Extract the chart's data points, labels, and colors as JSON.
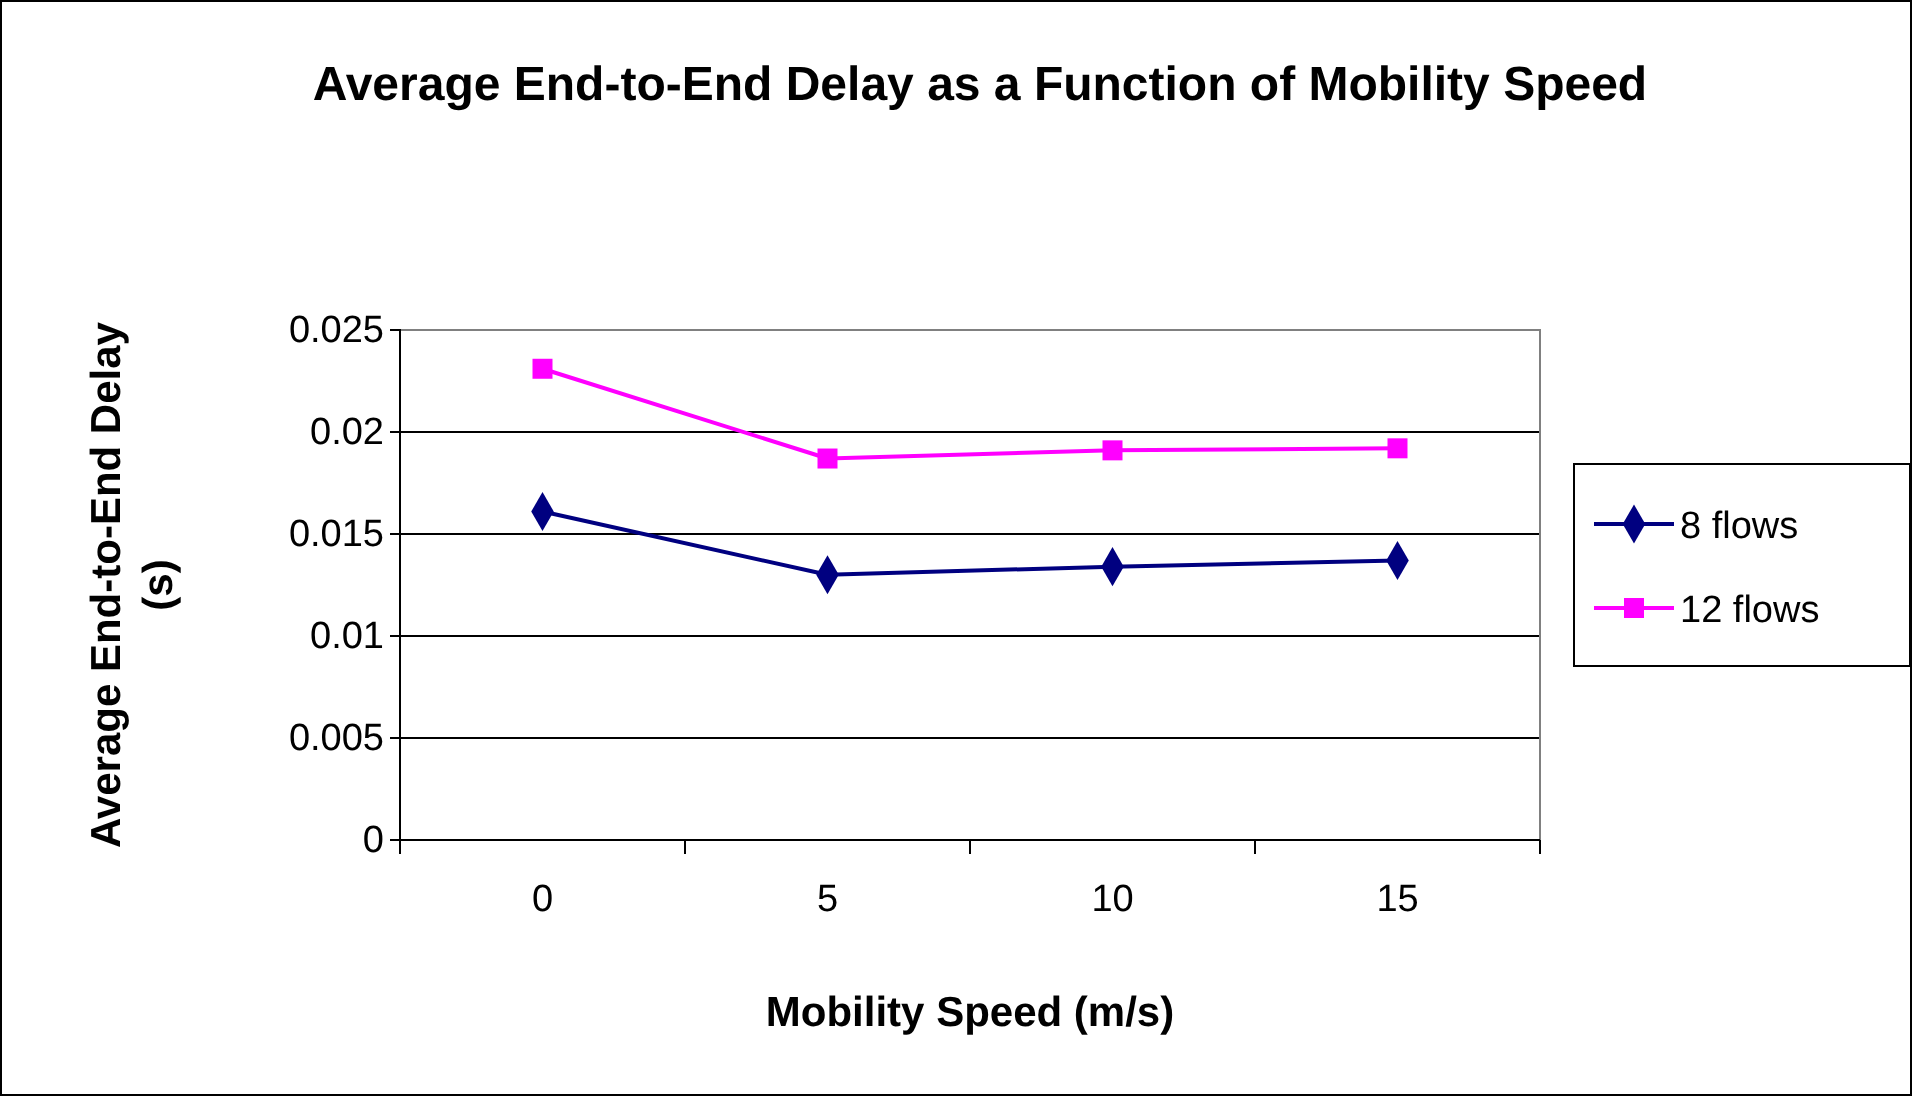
{
  "chart_data": {
    "type": "line",
    "title": "Average End-to-End Delay as a Function of Mobility Speed",
    "xlabel": "Mobility Speed (m/s)",
    "ylabel": "Average End-to-End Delay (s)",
    "categories": [
      "0",
      "5",
      "10",
      "15"
    ],
    "series": [
      {
        "name": "8 flows",
        "color": "#000080",
        "marker": "diamond",
        "values": [
          0.0161,
          0.013,
          0.0134,
          0.0137
        ]
      },
      {
        "name": "12 flows",
        "color": "#ff00ff",
        "marker": "square",
        "values": [
          0.0231,
          0.0187,
          0.0191,
          0.0192
        ]
      }
    ],
    "ylim": [
      0,
      0.025
    ],
    "yticks": [
      0,
      0.005,
      0.01,
      0.015,
      0.02,
      0.025
    ],
    "grid": "y",
    "legend": "right",
    "line_style": "solid"
  }
}
